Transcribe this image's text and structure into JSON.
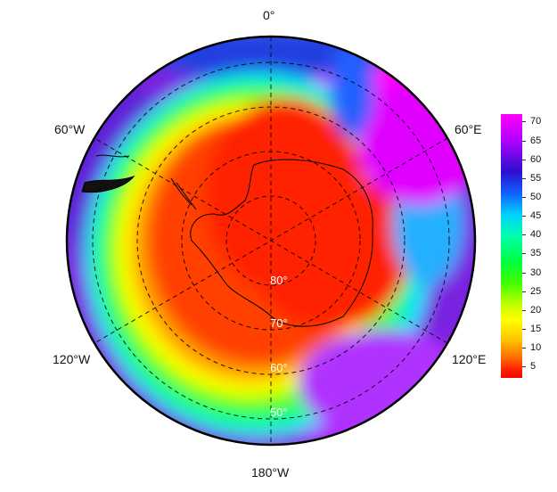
{
  "map": {
    "projection": "south-polar-stereographic",
    "colormap": "rainbow",
    "longitude_labels": [
      {
        "key": "0",
        "text": "0°"
      },
      {
        "key": "60e",
        "text": "60°E"
      },
      {
        "key": "120e",
        "text": "120°E"
      },
      {
        "key": "180w",
        "text": "180°W"
      },
      {
        "key": "120w",
        "text": "120°W"
      },
      {
        "key": "60w",
        "text": "60°W"
      }
    ],
    "latitude_labels": [
      {
        "key": "80",
        "text": "80°"
      },
      {
        "key": "70",
        "text": "70°"
      },
      {
        "key": "60",
        "text": "60°"
      },
      {
        "key": "50",
        "text": "50°"
      }
    ],
    "label_color_latitudes": "#ffffff",
    "gridline_style": "dashed"
  },
  "colorbar": {
    "ticks": [
      "70",
      "65",
      "60",
      "55",
      "50",
      "45",
      "40",
      "35",
      "30",
      "25",
      "20",
      "15",
      "10",
      "5"
    ],
    "min": 2,
    "max": 72,
    "colors": [
      "#ff00ff",
      "#2a10d0",
      "#00d0ff",
      "#00ff40",
      "#ffff00",
      "#ff0000"
    ]
  }
}
